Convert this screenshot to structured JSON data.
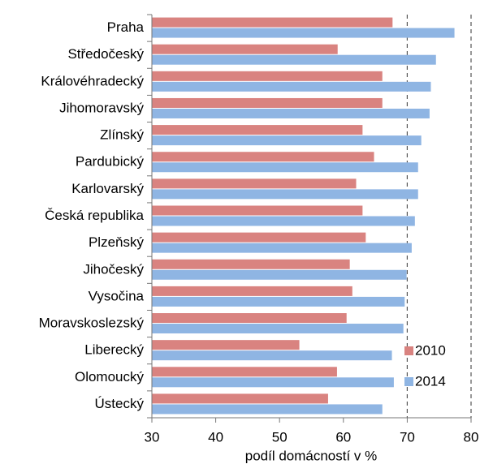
{
  "chart_data": {
    "type": "hbar",
    "xlabel": "podíl domácností v %",
    "categories": [
      "Praha",
      "Středočeský",
      "Královéhradecký",
      "Jihomoravský",
      "Zlínský",
      "Pardubický",
      "Karlovarský",
      "Česká republika",
      "Plzeňský",
      "Jihočeský",
      "Vysočina",
      "Moravskoslezský",
      "Liberecký",
      "Olomoucký",
      "Ústecký"
    ],
    "series": [
      {
        "name": "2010",
        "color": "#d98380",
        "values": [
          67.7,
          59.1,
          66.1,
          66.1,
          63.0,
          64.8,
          62.0,
          63.0,
          63.5,
          61.0,
          61.4,
          60.5,
          53.1,
          59.0,
          57.6
        ]
      },
      {
        "name": "2014",
        "color": "#8fb5e3",
        "values": [
          77.4,
          74.5,
          73.7,
          73.5,
          72.2,
          71.7,
          71.7,
          71.2,
          70.7,
          69.9,
          69.6,
          69.4,
          67.6,
          67.9,
          66.1
        ]
      }
    ],
    "xlim": [
      30,
      80
    ],
    "xticks": [
      30,
      40,
      50,
      60,
      70,
      80
    ],
    "grid_ticks": [
      70,
      80
    ],
    "legend": "lower right"
  }
}
